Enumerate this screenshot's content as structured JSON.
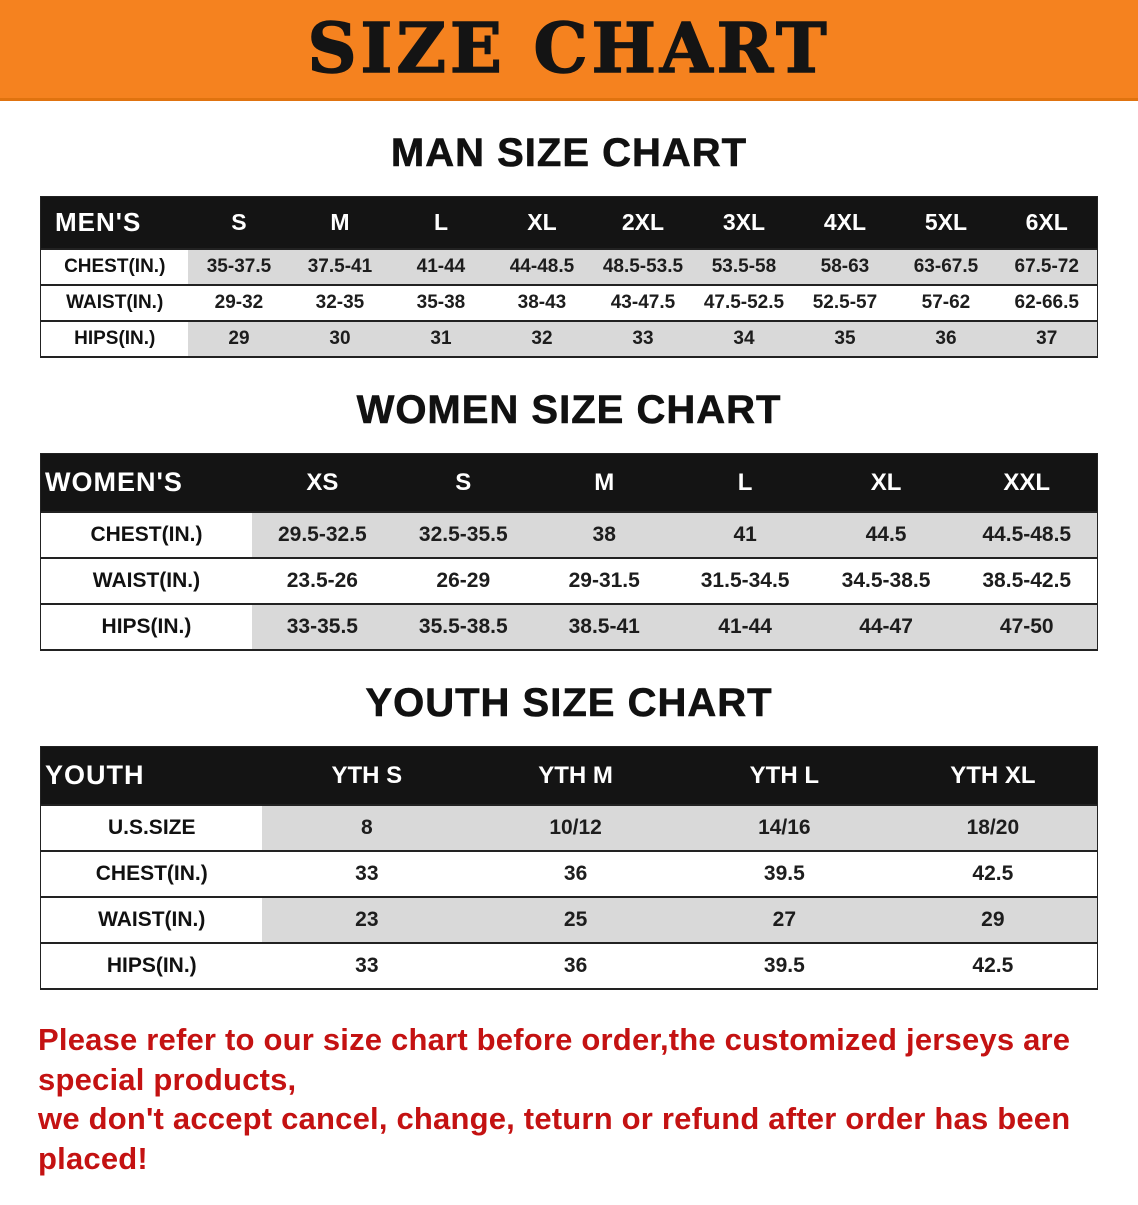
{
  "banner": {
    "title": "SIZE CHART",
    "bg_color": "#f5821f",
    "text_color": "#141414"
  },
  "sections": [
    {
      "heading": "MAN SIZE CHART",
      "table": {
        "header": [
          "MEN'S",
          "S",
          "M",
          "L",
          "XL",
          "2XL",
          "3XL",
          "4XL",
          "5XL",
          "6XL"
        ],
        "rows": [
          {
            "label": "CHEST(IN.)",
            "values": [
              "35-37.5",
              "37.5-41",
              "41-44",
              "44-48.5",
              "48.5-53.5",
              "53.5-58",
              "58-63",
              "63-67.5",
              "67.5-72"
            ]
          },
          {
            "label": "WAIST(IN.)",
            "values": [
              "29-32",
              "32-35",
              "35-38",
              "38-43",
              "43-47.5",
              "47.5-52.5",
              "52.5-57",
              "57-62",
              "62-66.5"
            ]
          },
          {
            "label": "HIPS(IN.)",
            "values": [
              "29",
              "30",
              "31",
              "32",
              "33",
              "34",
              "35",
              "36",
              "37"
            ]
          }
        ]
      }
    },
    {
      "heading": "WOMEN SIZE CHART",
      "table": {
        "header": [
          "WOMEN'S",
          "XS",
          "S",
          "M",
          "L",
          "XL",
          "XXL"
        ],
        "rows": [
          {
            "label": "CHEST(IN.)",
            "values": [
              "29.5-32.5",
              "32.5-35.5",
              "38",
              "41",
              "44.5",
              "44.5-48.5"
            ]
          },
          {
            "label": "WAIST(IN.)",
            "values": [
              "23.5-26",
              "26-29",
              "29-31.5",
              "31.5-34.5",
              "34.5-38.5",
              "38.5-42.5"
            ]
          },
          {
            "label": "HIPS(IN.)",
            "values": [
              "33-35.5",
              "35.5-38.5",
              "38.5-41",
              "41-44",
              "44-47",
              "47-50"
            ]
          }
        ]
      }
    },
    {
      "heading": "YOUTH SIZE CHART",
      "table": {
        "header": [
          "YOUTH",
          "YTH S",
          "YTH M",
          "YTH L",
          "YTH XL"
        ],
        "rows": [
          {
            "label": "U.S.SIZE",
            "values": [
              "8",
              "10/12",
              "14/16",
              "18/20"
            ]
          },
          {
            "label": "CHEST(IN.)",
            "values": [
              "33",
              "36",
              "39.5",
              "42.5"
            ]
          },
          {
            "label": "WAIST(IN.)",
            "values": [
              "23",
              "25",
              "27",
              "29"
            ]
          },
          {
            "label": "HIPS(IN.)",
            "values": [
              "33",
              "36",
              "39.5",
              "42.5"
            ]
          }
        ]
      }
    }
  ],
  "footer": {
    "line1": "Please refer to our size chart before order,the customized jerseys are special products,",
    "line2": "we don't accept cancel, change, teturn or refund after order has been placed!"
  }
}
